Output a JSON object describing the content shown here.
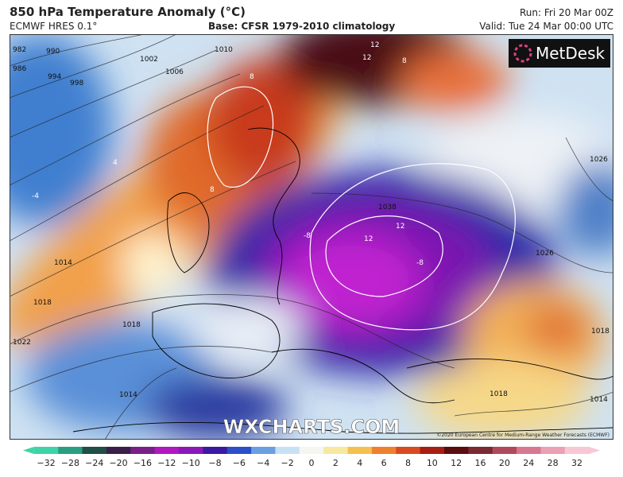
{
  "header": {
    "title": "850 hPa Temperature Anomaly (°C)",
    "model": "ECMWF HRES 0.1°",
    "base": "Base: CFSR 1979-2010 climatology",
    "run": "Run: Fri 20 Mar 00Z",
    "valid": "Valid: Tue 24 Mar 00:00 UTC"
  },
  "logo": "MetDesk",
  "watermark": "WXCHARTS.COM",
  "copyright": "©2020 European Centre for Medium-Range Weather Forecasts (ECMWF)",
  "contour_labels": [
    "982",
    "986",
    "990",
    "994",
    "998",
    "1002",
    "1006",
    "1010",
    "1014",
    "1018",
    "1022",
    "1018",
    "1014",
    "1038",
    "1026",
    "1026",
    "1018",
    "1014",
    "1018",
    "12",
    "12",
    "8",
    "8",
    "8",
    "-8",
    "12",
    "12",
    "-8",
    "4",
    "-4"
  ],
  "colorbar": {
    "labels": [
      "−32",
      "−28",
      "−24",
      "−20",
      "−16",
      "−12",
      "−10",
      "−8",
      "−6",
      "−4",
      "−2",
      "0",
      "2",
      "4",
      "6",
      "8",
      "10",
      "12",
      "16",
      "20",
      "24",
      "28",
      "32"
    ],
    "colors": [
      "#3fd3a8",
      "#2a9e80",
      "#1f4f48",
      "#3a1f4a",
      "#7a1f8a",
      "#b018c0",
      "#8a1ab8",
      "#3a1aa0",
      "#2c4fc8",
      "#6aa0e0",
      "#c8e0f4",
      "#f6f6f0",
      "#f7e8a0",
      "#f6c050",
      "#ee8030",
      "#d84a20",
      "#a81e14",
      "#5a0e10",
      "#7a2a30",
      "#b04a5a",
      "#d87890",
      "#eca0b4",
      "#f6c8d6"
    ]
  }
}
